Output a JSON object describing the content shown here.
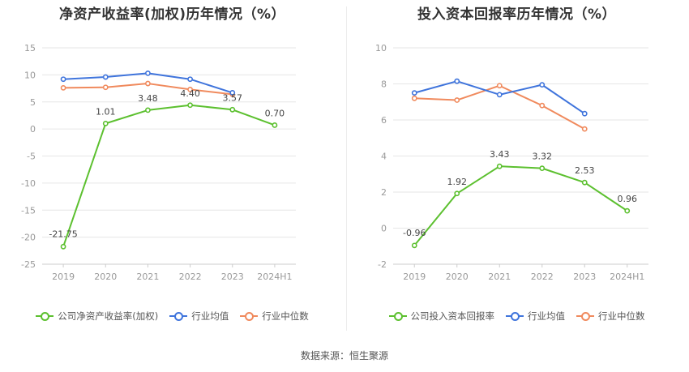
{
  "footer": {
    "source": "数据来源：恒生聚源"
  },
  "chart_data": [
    {
      "type": "line",
      "title": "净资产收益率(加权)历年情况（%）",
      "categories": [
        "2019",
        "2020",
        "2021",
        "2022",
        "2023",
        "2024H1"
      ],
      "ylim": [
        -25,
        15
      ],
      "yticks": [
        -25,
        -20,
        -15,
        -10,
        -5,
        0,
        5,
        10,
        15
      ],
      "grid": true,
      "legend_position": "bottom",
      "series": [
        {
          "name": "公司净资产收益率(加权)",
          "color": "#5cc02f",
          "labeled": true,
          "values": [
            -21.75,
            1.01,
            3.48,
            4.4,
            3.57,
            0.7
          ],
          "labels": [
            "-21.75",
            "1.01",
            "3.48",
            "4.40",
            "3.57",
            "0.70"
          ]
        },
        {
          "name": "行业均值",
          "color": "#3f74dc",
          "labeled": false,
          "values": [
            9.2,
            9.6,
            10.3,
            9.2,
            6.7,
            null
          ]
        },
        {
          "name": "行业中位数",
          "color": "#f08a5d",
          "labeled": false,
          "values": [
            7.6,
            7.7,
            8.4,
            7.3,
            6.4,
            null
          ]
        }
      ]
    },
    {
      "type": "line",
      "title": "投入资本回报率历年情况（%）",
      "categories": [
        "2019",
        "2020",
        "2021",
        "2022",
        "2023",
        "2024H1"
      ],
      "ylim": [
        -2,
        10
      ],
      "yticks": [
        -2,
        0,
        2,
        4,
        6,
        8,
        10
      ],
      "grid": true,
      "legend_position": "bottom",
      "series": [
        {
          "name": "公司投入资本回报率",
          "color": "#5cc02f",
          "labeled": true,
          "values": [
            -0.96,
            1.92,
            3.43,
            3.32,
            2.53,
            0.96
          ],
          "labels": [
            "-0.96",
            "1.92",
            "3.43",
            "3.32",
            "2.53",
            "0.96"
          ]
        },
        {
          "name": "行业均值",
          "color": "#3f74dc",
          "labeled": false,
          "values": [
            7.5,
            8.15,
            7.4,
            7.95,
            6.35,
            null
          ]
        },
        {
          "name": "行业中位数",
          "color": "#f08a5d",
          "labeled": false,
          "values": [
            7.2,
            7.1,
            7.9,
            6.8,
            5.5,
            null
          ]
        }
      ]
    }
  ]
}
